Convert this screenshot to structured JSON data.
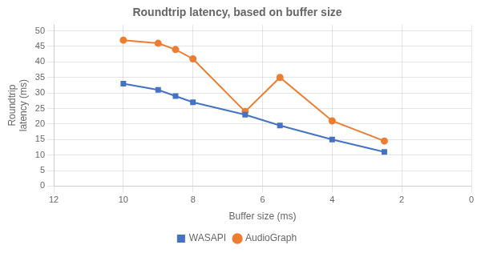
{
  "chart_data": {
    "type": "line",
    "title": "Roundtrip latency, based on buffer size",
    "x_label": "Buffer size (ms)",
    "y_label": "Roundtrip\nlatency (ms)",
    "x": [
      10,
      9,
      8.5,
      8,
      6.5,
      5.5,
      4,
      2.5
    ],
    "series": [
      {
        "name": "WASAPI",
        "color": "#4472C4",
        "marker": "square",
        "values": [
          33,
          31,
          29,
          27,
          23,
          19.5,
          15,
          11
        ]
      },
      {
        "name": "AudioGraph",
        "color": "#ED7D31",
        "marker": "circle",
        "values": [
          47,
          46,
          44,
          41,
          24,
          35,
          21,
          14.5
        ]
      }
    ],
    "xlim": [
      12,
      0
    ],
    "xticks": [
      12,
      10,
      8,
      6,
      4,
      2,
      0
    ],
    "ylim": [
      0,
      52
    ],
    "yticks": [
      0,
      5,
      10,
      15,
      20,
      25,
      30,
      35,
      40,
      45,
      50
    ],
    "grid": true,
    "legend": "bottom"
  }
}
